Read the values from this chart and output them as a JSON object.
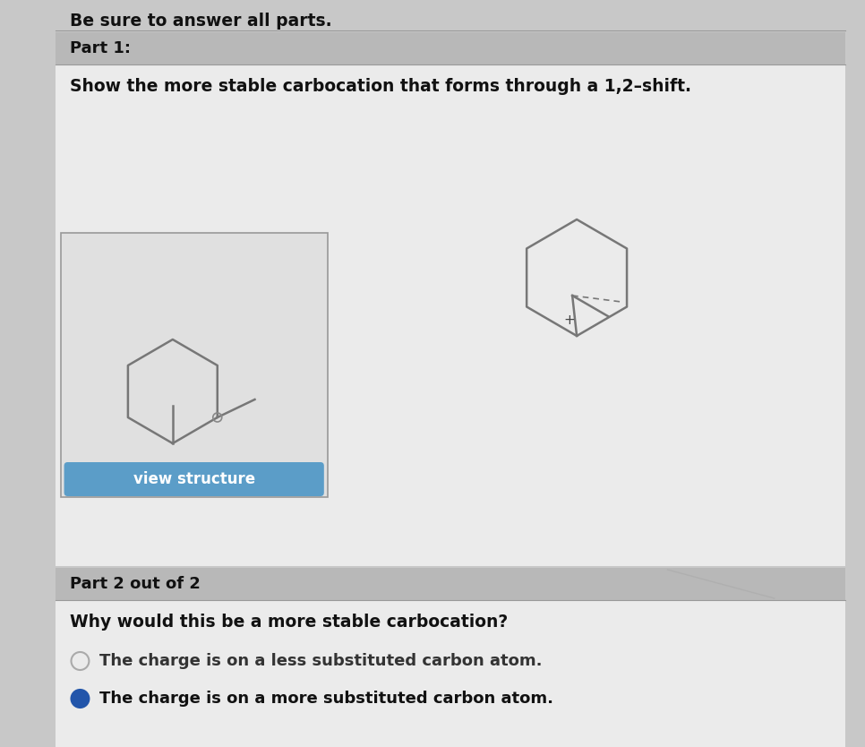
{
  "bg_color": "#c8c8c8",
  "white_bg": "#f0f0f0",
  "header_text": "Be sure to answer all parts.",
  "part1_label": "Part 1:",
  "part1_header_bg": "#b8b8b8",
  "part1_question": "Show the more stable carbocation that forms through a 1,2–shift.",
  "part2_label": "Part 2 out of 2",
  "part2_header_bg": "#b8b8b8",
  "part2_question": "Why would this be a more stable carbocation?",
  "option1_text": "The charge is on a less substituted carbon atom.",
  "option2_text": "The charge is on a more substituted carbon atom.",
  "option2_selected": true,
  "view_structure_btn_color": "#5b9dc8",
  "view_structure_text": "view structure",
  "box_border_color": "#999999",
  "box_bg": "#e8e8e8",
  "radio_selected_color": "#2255aa",
  "radio_unselected_color": "#aaaaaa",
  "molecule_color": "#777777",
  "plus_color": "#444444",
  "text_color": "#111111"
}
